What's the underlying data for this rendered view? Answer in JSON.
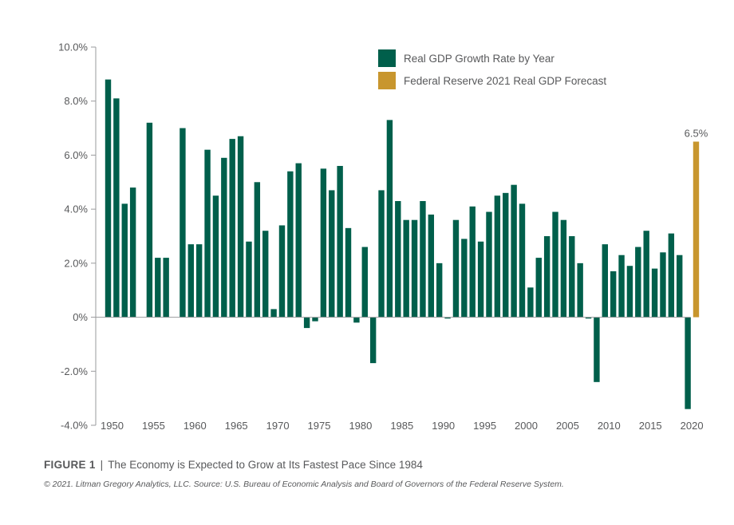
{
  "chart_data": {
    "type": "bar",
    "ylim": [
      -4,
      10
    ],
    "yticks": [
      "10.0%",
      "8.0%",
      "6.0%",
      "4.0%",
      "2.0%",
      "0%",
      "-2.0%",
      "-4.0%"
    ],
    "ytick_values": [
      10,
      8,
      6,
      4,
      2,
      0,
      -2,
      -4
    ],
    "xticks": [
      "1950",
      "1955",
      "1960",
      "1965",
      "1970",
      "1975",
      "1980",
      "1985",
      "1990",
      "1995",
      "2000",
      "2005",
      "2010",
      "2015",
      "2020"
    ],
    "grid": false,
    "legend_position": "top-right",
    "series": [
      {
        "name": "Real GDP Growth Rate by Year",
        "color": "#005f4b",
        "x": [
          1950,
          1951,
          1952,
          1953,
          1954,
          1955,
          1956,
          1957,
          1958,
          1959,
          1960,
          1961,
          1962,
          1963,
          1964,
          1965,
          1966,
          1967,
          1968,
          1969,
          1970,
          1971,
          1972,
          1973,
          1974,
          1975,
          1976,
          1977,
          1978,
          1979,
          1980,
          1981,
          1982,
          1983,
          1984,
          1985,
          1986,
          1987,
          1988,
          1989,
          1990,
          1991,
          1992,
          1993,
          1994,
          1995,
          1996,
          1997,
          1998,
          1999,
          2000,
          2001,
          2002,
          2003,
          2004,
          2005,
          2006,
          2007,
          2008,
          2009,
          2010,
          2011,
          2012,
          2013,
          2014,
          2015,
          2016,
          2017,
          2018,
          2019,
          2020
        ],
        "values": [
          8.8,
          8.1,
          4.2,
          4.8,
          null,
          7.2,
          2.2,
          2.2,
          null,
          7.0,
          2.7,
          2.7,
          6.2,
          4.5,
          5.9,
          6.6,
          6.7,
          2.8,
          5.0,
          3.2,
          0.3,
          3.4,
          5.4,
          5.7,
          -0.4,
          -0.15,
          5.5,
          4.7,
          5.6,
          3.3,
          -0.2,
          2.6,
          -1.7,
          4.7,
          7.3,
          4.3,
          3.6,
          3.6,
          4.3,
          3.8,
          2.0,
          -0.05,
          3.6,
          2.9,
          4.1,
          2.8,
          3.9,
          4.5,
          4.6,
          4.9,
          4.2,
          1.1,
          2.2,
          3.0,
          3.9,
          3.6,
          3.0,
          2.0,
          -0.05,
          -2.4,
          2.7,
          1.7,
          2.3,
          1.9,
          2.6,
          3.2,
          1.8,
          2.4,
          3.1,
          2.3,
          -3.4
        ]
      },
      {
        "name": "Federal Reserve 2021 Real GDP Forecast",
        "color": "#c8962e",
        "x": [
          2021
        ],
        "values": [
          6.5
        ],
        "label": "6.5%"
      }
    ]
  },
  "caption": {
    "figure": "FIGURE 1",
    "separator": "|",
    "text": "The Economy is Expected to Grow at Its Fastest Pace Since 1984"
  },
  "source": "© 2021.  Litman Gregory Analytics, LLC.  Source: U.S. Bureau of Economic Analysis and Board of Governors of the Federal Reserve System."
}
